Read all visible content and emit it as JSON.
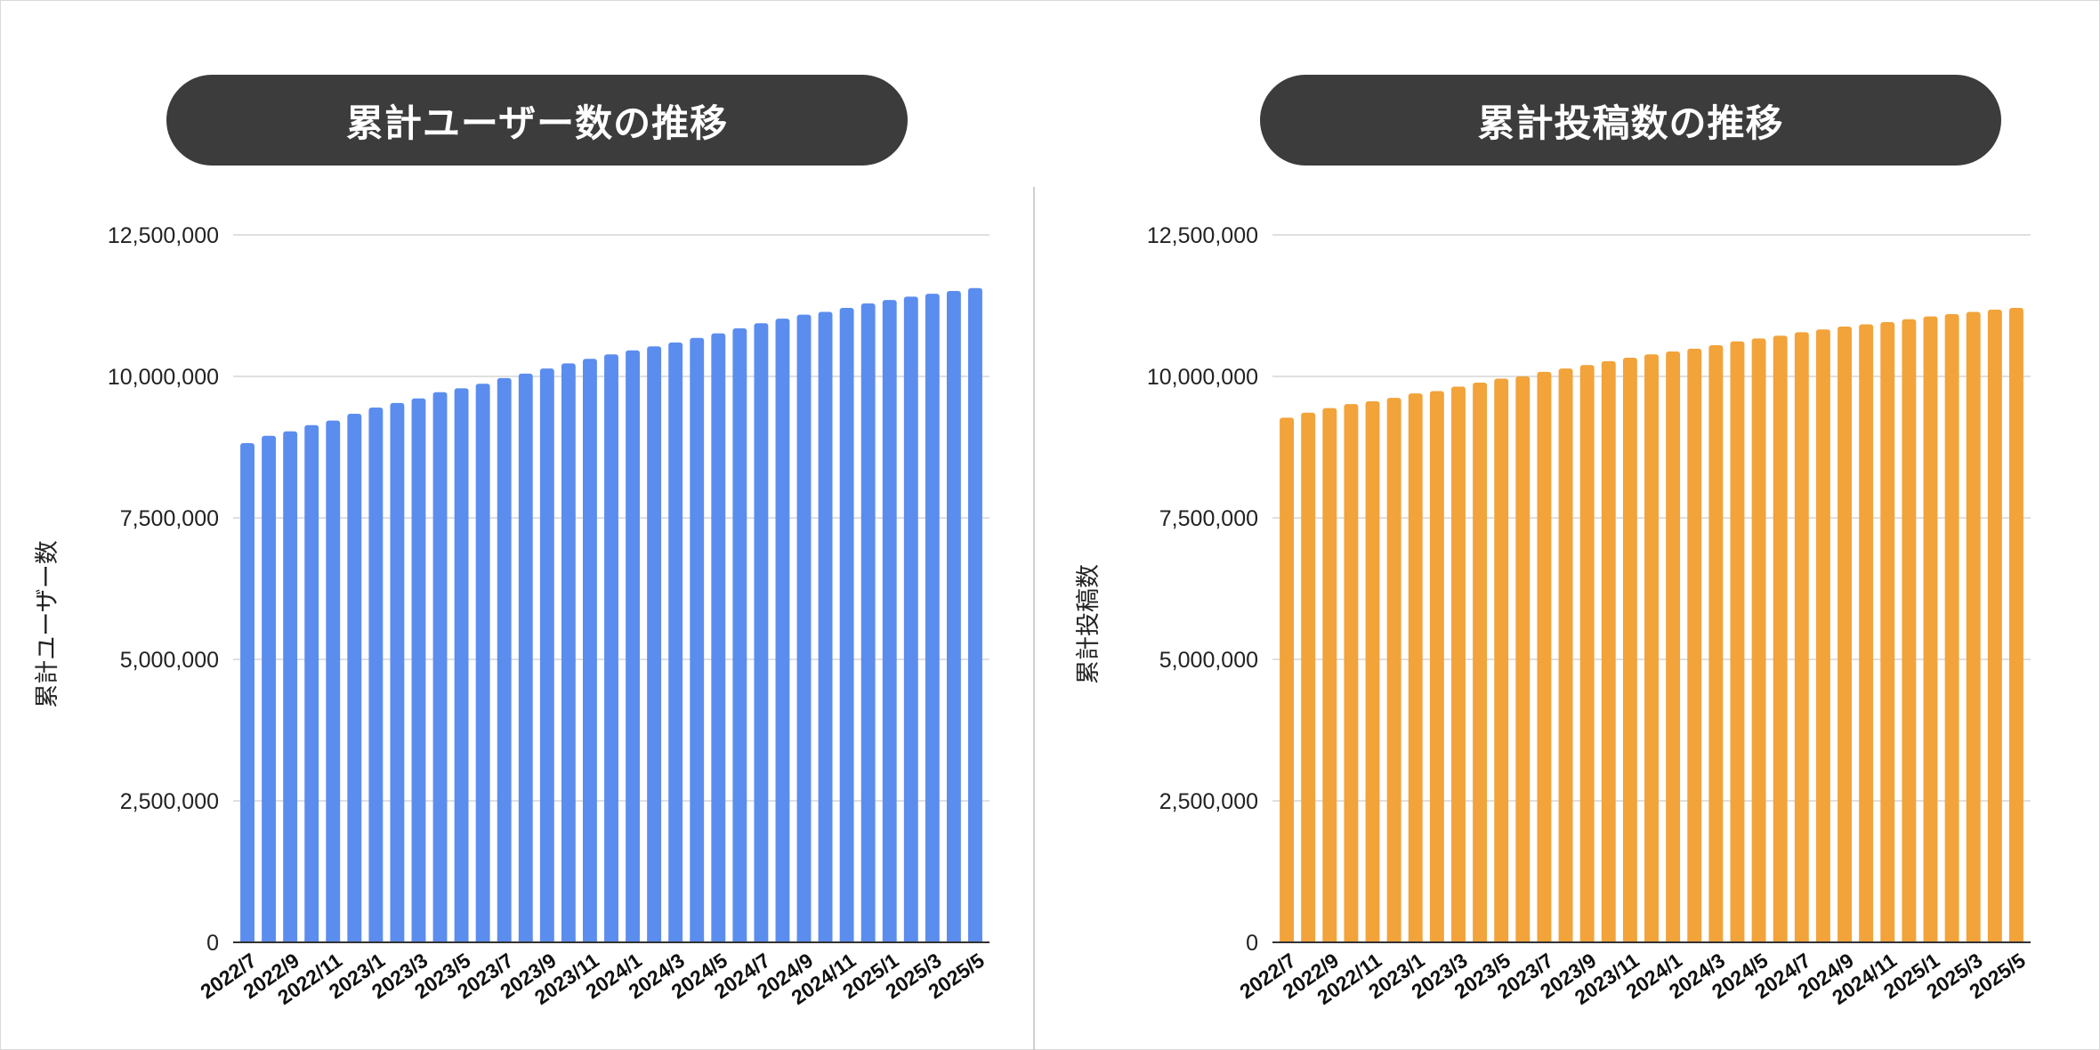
{
  "charts": [
    {
      "id": "users",
      "title": "累計ユーザー数の推移",
      "ylabel": "累計ユーザー数",
      "color": "#5b8def"
    },
    {
      "id": "posts",
      "title": "累計投稿数の推移",
      "ylabel": "累計投稿数",
      "color": "#f2a33a"
    }
  ],
  "chart_data": [
    {
      "type": "bar",
      "title": "累計ユーザー数の推移",
      "xlabel": "",
      "ylabel": "累計ユーザー数",
      "ylim": [
        0,
        12500000
      ],
      "yticks": [
        0,
        2500000,
        5000000,
        7500000,
        10000000,
        12500000
      ],
      "ytick_labels": [
        "0",
        "2,500,000",
        "5,000,000",
        "7,500,000",
        "10,000,000",
        "12,500,000"
      ],
      "grid": true,
      "categories": [
        "2022/7",
        "2022/8",
        "2022/9",
        "2022/10",
        "2022/11",
        "2022/12",
        "2023/1",
        "2023/2",
        "2023/3",
        "2023/4",
        "2023/5",
        "2023/6",
        "2023/7",
        "2023/8",
        "2023/9",
        "2023/10",
        "2023/11",
        "2023/12",
        "2024/1",
        "2024/2",
        "2024/3",
        "2024/4",
        "2024/5",
        "2024/6",
        "2024/7",
        "2024/8",
        "2024/9",
        "2024/10",
        "2024/11",
        "2024/12",
        "2025/1",
        "2025/2",
        "2025/3",
        "2025/4",
        "2025/5"
      ],
      "shown_tick_labels": [
        "2022/7",
        "2022/9",
        "2022/11",
        "2023/1",
        "2023/3",
        "2023/5",
        "2023/7",
        "2023/9",
        "2023/11",
        "2024/1",
        "2024/3",
        "2024/5",
        "2024/7",
        "2024/9",
        "2024/11",
        "2025/1",
        "2025/3",
        "2025/5"
      ],
      "values": [
        8820000,
        8950000,
        9030000,
        9140000,
        9220000,
        9340000,
        9450000,
        9530000,
        9610000,
        9720000,
        9790000,
        9870000,
        9970000,
        10050000,
        10140000,
        10230000,
        10310000,
        10390000,
        10460000,
        10530000,
        10600000,
        10680000,
        10760000,
        10850000,
        10940000,
        11020000,
        11090000,
        11140000,
        11210000,
        11290000,
        11350000,
        11410000,
        11460000,
        11510000,
        11560000
      ]
    },
    {
      "type": "bar",
      "title": "累計投稿数の推移",
      "xlabel": "",
      "ylabel": "累計投稿数",
      "ylim": [
        0,
        12500000
      ],
      "yticks": [
        0,
        2500000,
        5000000,
        7500000,
        10000000,
        12500000
      ],
      "ytick_labels": [
        "0",
        "2,500,000",
        "5,000,000",
        "7,500,000",
        "10,000,000",
        "12,500,000"
      ],
      "grid": true,
      "categories": [
        "2022/7",
        "2022/8",
        "2022/9",
        "2022/10",
        "2022/11",
        "2022/12",
        "2023/1",
        "2023/2",
        "2023/3",
        "2023/4",
        "2023/5",
        "2023/6",
        "2023/7",
        "2023/8",
        "2023/9",
        "2023/10",
        "2023/11",
        "2023/12",
        "2024/1",
        "2024/2",
        "2024/3",
        "2024/4",
        "2024/5",
        "2024/6",
        "2024/7",
        "2024/8",
        "2024/9",
        "2024/10",
        "2024/11",
        "2024/12",
        "2025/1",
        "2025/2",
        "2025/3",
        "2025/4",
        "2025/5"
      ],
      "shown_tick_labels": [
        "2022/7",
        "2022/9",
        "2022/11",
        "2023/1",
        "2023/3",
        "2023/5",
        "2023/7",
        "2023/9",
        "2023/11",
        "2024/1",
        "2024/3",
        "2024/5",
        "2024/7",
        "2024/9",
        "2024/11",
        "2025/1",
        "2025/3",
        "2025/5"
      ],
      "values": [
        9270000,
        9360000,
        9440000,
        9510000,
        9560000,
        9620000,
        9700000,
        9740000,
        9820000,
        9890000,
        9960000,
        10000000,
        10080000,
        10140000,
        10200000,
        10270000,
        10330000,
        10390000,
        10440000,
        10490000,
        10550000,
        10620000,
        10670000,
        10720000,
        10780000,
        10830000,
        10880000,
        10920000,
        10960000,
        11010000,
        11060000,
        11100000,
        11140000,
        11180000,
        11210000
      ]
    }
  ]
}
